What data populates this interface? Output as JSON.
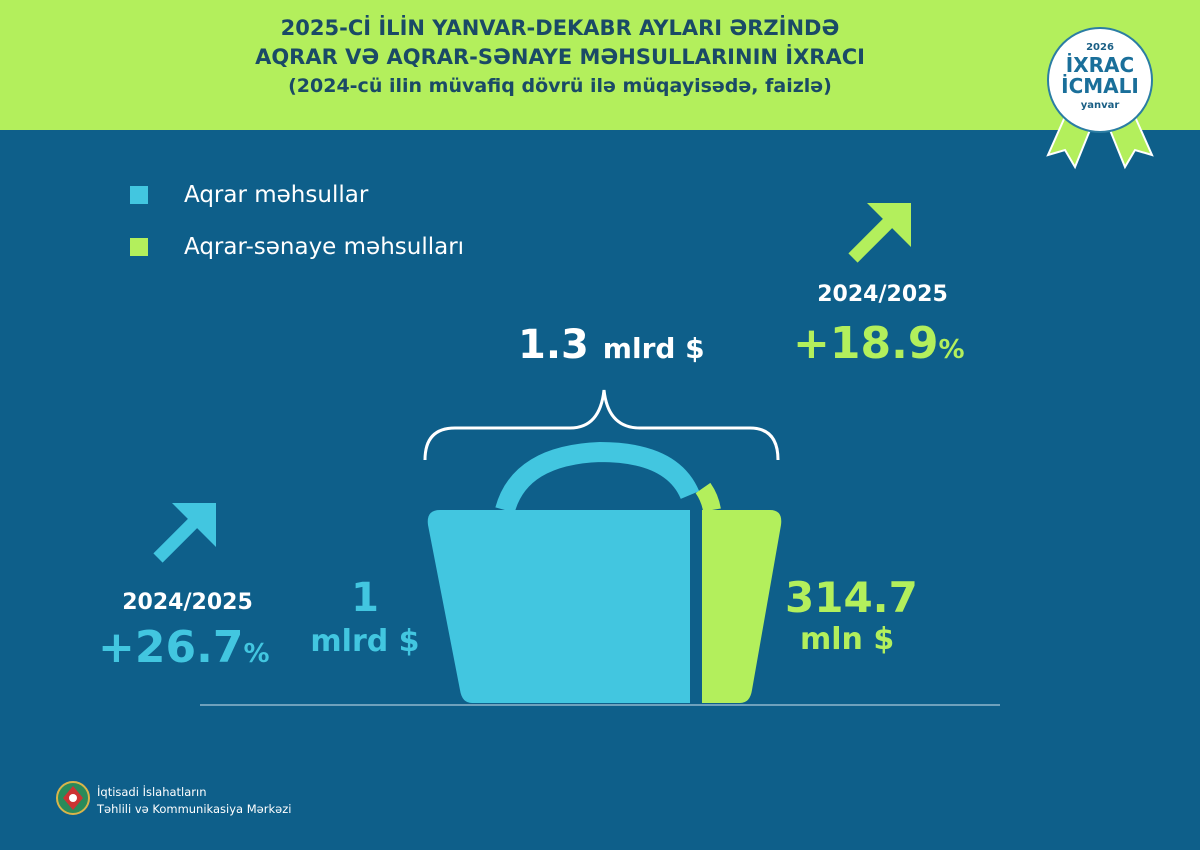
{
  "header": {
    "line1": "2025-Cİ İLİN YANVAR-DEKABR AYLARI ƏRZİNDƏ",
    "line2": "AQRAR VƏ AQRAR-SƏNAYE MƏHSULLARININ İXRACI",
    "line3": "(2024-cü ilin müvafiq dövrü ilə müqayisədə, faizlə)"
  },
  "badge": {
    "year": "2026",
    "line1": "İXRAC",
    "line2": "İCMALI",
    "month": "yanvar"
  },
  "legend": [
    {
      "label": "Aqrar məhsullar",
      "color": "#42c6e0"
    },
    {
      "label": "Aqrar-sənaye məhsulları",
      "color": "#b3ef5c"
    }
  ],
  "total": {
    "value": "1.3",
    "unit": "mlrd $"
  },
  "agrarian": {
    "value": "1",
    "unit": "mlrd $",
    "period": "2024/2025",
    "change": "+26.7",
    "pct": "%",
    "icon": "arrow-up-right-icon"
  },
  "agroindustrial": {
    "value": "314.7",
    "unit": "mln $",
    "period": "2024/2025",
    "change": "+18.9",
    "pct": "%",
    "icon": "arrow-up-right-icon"
  },
  "footer": {
    "line1": "İqtisadi İslahatların",
    "line2": "Təhlili və Kommunikasiya Mərkəzi"
  },
  "colors": {
    "background": "#0e5f8a",
    "green": "#b3ef5c",
    "cyan": "#42c6e0"
  }
}
